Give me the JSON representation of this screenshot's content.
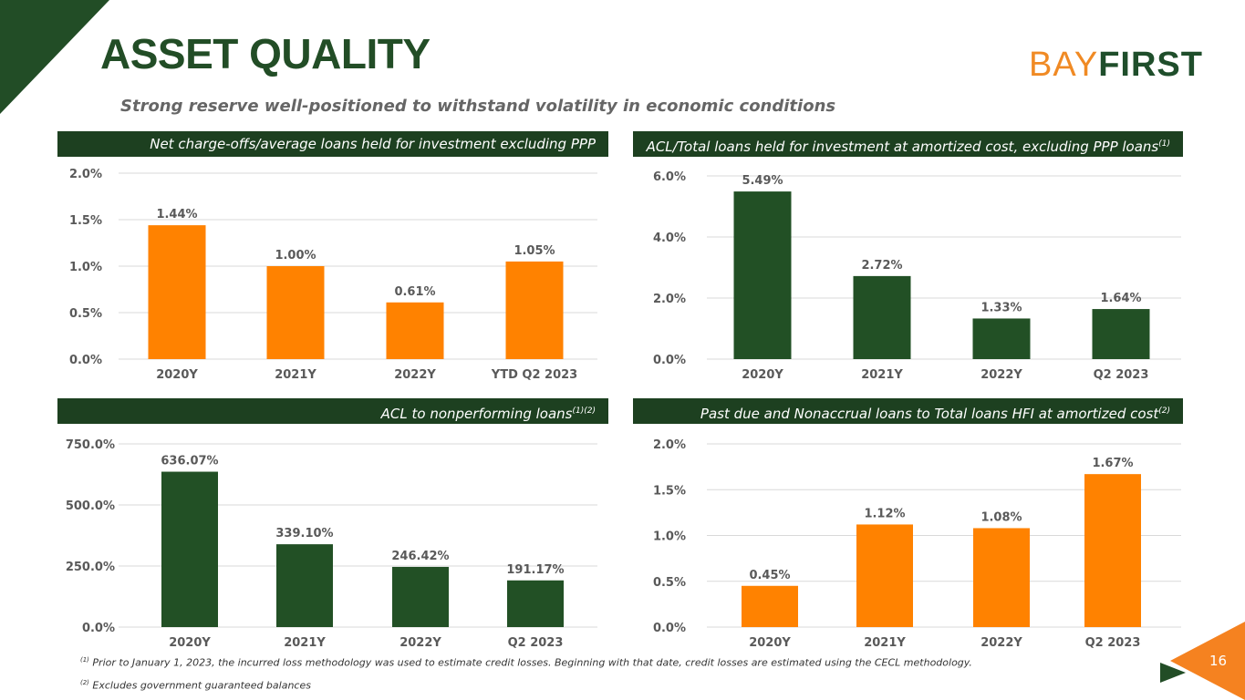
{
  "header": {
    "title": "ASSET QUALITY",
    "subtitle": "Strong reserve well-positioned to withstand volatility in economic conditions",
    "logo_text": {
      "part1": "BAY",
      "part2": "FIRST"
    }
  },
  "colors": {
    "green": "#225025",
    "orange": "#ff8200",
    "header_bar": "#1d4020"
  },
  "chart_data": [
    {
      "type": "bar",
      "title": "Net charge-offs/average loans held for investment excluding PPP",
      "title_sup": "",
      "categories": [
        "2020Y",
        "2021Y",
        "2022Y",
        "YTD Q2 2023"
      ],
      "values": [
        1.44,
        1.0,
        0.61,
        1.05
      ],
      "labels": [
        "1.44%",
        "1.00%",
        "0.61%",
        "1.05%"
      ],
      "yticks": [
        "0.0%",
        "0.5%",
        "1.0%",
        "1.5%",
        "2.0%"
      ],
      "ylim": [
        0,
        2.0
      ],
      "color": "#ff8200",
      "grid": true
    },
    {
      "type": "bar",
      "title": "ACL/Total loans held for investment at amortized cost, excluding PPP loans",
      "title_sup": "(1)",
      "categories": [
        "2020Y",
        "2021Y",
        "2022Y",
        "Q2 2023"
      ],
      "values": [
        5.49,
        2.72,
        1.33,
        1.64
      ],
      "labels": [
        "5.49%",
        "2.72%",
        "1.33%",
        "1.64%"
      ],
      "yticks": [
        "0.0%",
        "2.0%",
        "4.0%",
        "6.0%"
      ],
      "ylim": [
        0,
        6.0
      ],
      "color": "#225025",
      "grid": true
    },
    {
      "type": "bar",
      "title": "ACL to nonperforming loans",
      "title_sup": "(1)(2)",
      "categories": [
        "2020Y",
        "2021Y",
        "2022Y",
        "Q2 2023"
      ],
      "values": [
        636.07,
        339.1,
        246.42,
        191.17
      ],
      "labels": [
        "636.07%",
        "339.10%",
        "246.42%",
        "191.17%"
      ],
      "yticks": [
        "0.0%",
        "250.0%",
        "500.0%",
        "750.0%"
      ],
      "ylim": [
        0,
        750
      ],
      "color": "#225025",
      "grid": true
    },
    {
      "type": "bar",
      "title": "Past due and Nonaccrual loans to Total loans HFI at amortized cost",
      "title_sup": "(2)",
      "categories": [
        "2020Y",
        "2021Y",
        "2022Y",
        "Q2 2023"
      ],
      "values": [
        0.45,
        1.12,
        1.08,
        1.67
      ],
      "labels": [
        "0.45%",
        "1.12%",
        "1.08%",
        "1.67%"
      ],
      "yticks": [
        "0.0%",
        "0.5%",
        "1.0%",
        "1.5%",
        "2.0%"
      ],
      "ylim": [
        0,
        2.0
      ],
      "color": "#ff8200",
      "grid": true
    }
  ],
  "footnotes": [
    {
      "mark": "(1)",
      "text": " Prior to January 1, 2023, the incurred loss methodology was used to estimate credit losses. Beginning with that date, credit losses are estimated using the CECL methodology."
    },
    {
      "mark": "(2)",
      "text": " Excludes government guaranteed balances"
    }
  ],
  "page_number": "16"
}
